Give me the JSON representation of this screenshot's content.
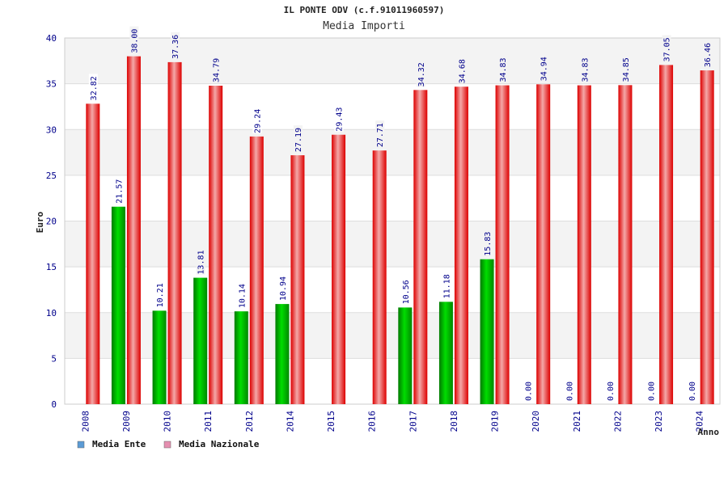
{
  "chart_data": {
    "type": "bar",
    "title": "IL PONTE ODV (c.f.91011960597)",
    "subtitle": "Media Importi",
    "xlabel": "Anno",
    "ylabel": "Euro",
    "ylim": [
      0,
      40
    ],
    "yticks": [
      0,
      5,
      10,
      15,
      20,
      25,
      30,
      35,
      40
    ],
    "grid": true,
    "legend_position": "bottom-left",
    "categories": [
      "2008",
      "2009",
      "2010",
      "2011",
      "2012",
      "2014",
      "2015",
      "2016",
      "2017",
      "2018",
      "2019",
      "2020",
      "2021",
      "2022",
      "2023",
      "2024"
    ],
    "series": [
      {
        "name": "Media Ente",
        "color": "#00aa00",
        "legend_color": "#5b9bd5",
        "values": [
          null,
          21.57,
          10.21,
          13.81,
          10.14,
          10.94,
          null,
          null,
          10.56,
          11.18,
          15.83,
          0.0,
          0.0,
          0.0,
          0.0,
          0.0
        ],
        "labels": [
          "",
          "21.57",
          "10.21",
          "13.81",
          "10.14",
          "10.94",
          "",
          "",
          "10.56",
          "11.18",
          "15.83",
          "0.00",
          "0.00",
          "0.00",
          "0.00",
          "0.00"
        ]
      },
      {
        "name": "Media Nazionale",
        "color": "#ee1111",
        "legend_color": "#e58fb0",
        "values": [
          32.82,
          38.0,
          37.36,
          34.79,
          29.24,
          27.19,
          29.43,
          27.71,
          34.32,
          34.68,
          34.83,
          34.94,
          34.83,
          34.85,
          37.05,
          36.46
        ],
        "labels": [
          "32.82",
          "38.00",
          "37.36",
          "34.79",
          "29.24",
          "27.19",
          "29.43",
          "27.71",
          "34.32",
          "34.68",
          "34.83",
          "34.94",
          "34.83",
          "34.85",
          "37.05",
          "36.46"
        ]
      }
    ]
  }
}
